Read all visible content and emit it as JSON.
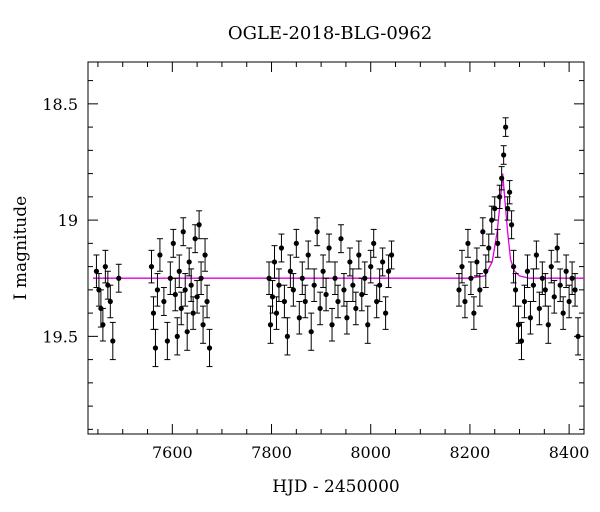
{
  "chart_data": {
    "type": "scatter",
    "title": "OGLE-2018-BLG-0962",
    "xlabel": "HJD - 2450000",
    "ylabel": "I magnitude",
    "xlim": [
      7430,
      8430
    ],
    "ylim": [
      19.92,
      18.32
    ],
    "y_inverted": true,
    "grid": false,
    "legend": "none",
    "xticks": [
      7600,
      7800,
      8000,
      8200,
      8400
    ],
    "xtick_labels": [
      "7600",
      "7800",
      "8000",
      "8200",
      "8400"
    ],
    "yticks": [
      18.5,
      19.0,
      19.5
    ],
    "ytick_labels": [
      "18.5",
      "19",
      "19.5"
    ],
    "colors": {
      "points": "#000000",
      "model": "#e000e0",
      "axes": "#000000"
    },
    "series": [
      {
        "kind": "points-with-errorbars",
        "x": [
          7447,
          7452,
          7456,
          7460,
          7465,
          7470,
          7475,
          7480,
          7492,
          7558,
          7562,
          7566,
          7570,
          7575,
          7583,
          7590,
          7596,
          7602,
          7606,
          7610,
          7614,
          7618,
          7622,
          7626,
          7630,
          7634,
          7638,
          7642,
          7646,
          7650,
          7654,
          7658,
          7662,
          7666,
          7670,
          7675,
          7795,
          7798,
          7802,
          7806,
          7810,
          7815,
          7820,
          7826,
          7832,
          7838,
          7844,
          7850,
          7856,
          7862,
          7868,
          7874,
          7880,
          7886,
          7892,
          7898,
          7904,
          7910,
          7916,
          7922,
          7928,
          7934,
          7940,
          7946,
          7952,
          7958,
          7964,
          7970,
          7976,
          7982,
          7988,
          7994,
          8000,
          8006,
          8012,
          8018,
          8024,
          8030,
          8036,
          8042,
          8178,
          8184,
          8190,
          8196,
          8202,
          8208,
          8214,
          8220,
          8226,
          8232,
          8238,
          8244,
          8250,
          8256,
          8260,
          8264,
          8268,
          8272,
          8276,
          8280,
          8284,
          8288,
          8292,
          8298,
          8304,
          8310,
          8316,
          8322,
          8328,
          8334,
          8340,
          8346,
          8352,
          8358,
          8364,
          8370,
          8376,
          8382,
          8388,
          8394,
          8400,
          8406,
          8412,
          8418
        ],
        "y": [
          19.22,
          19.3,
          19.38,
          19.45,
          19.2,
          19.28,
          19.35,
          19.52,
          19.25,
          19.2,
          19.4,
          19.55,
          19.3,
          19.15,
          19.35,
          19.52,
          19.25,
          19.1,
          19.32,
          19.5,
          19.22,
          19.38,
          19.05,
          19.3,
          19.48,
          19.18,
          19.28,
          19.4,
          19.08,
          19.33,
          19.02,
          19.25,
          19.45,
          19.15,
          19.35,
          19.55,
          19.25,
          19.45,
          19.33,
          19.18,
          19.4,
          19.28,
          19.12,
          19.35,
          19.5,
          19.22,
          19.3,
          19.1,
          19.42,
          19.25,
          19.35,
          19.15,
          19.48,
          19.28,
          19.05,
          19.38,
          19.22,
          19.32,
          19.12,
          19.45,
          19.25,
          19.35,
          19.08,
          19.3,
          19.42,
          19.18,
          19.28,
          19.38,
          19.15,
          19.32,
          19.25,
          19.45,
          19.2,
          19.1,
          19.35,
          19.28,
          19.18,
          19.4,
          19.22,
          19.15,
          19.3,
          19.2,
          19.35,
          19.1,
          19.25,
          19.4,
          19.18,
          19.3,
          19.05,
          19.22,
          19.12,
          19.0,
          18.95,
          19.1,
          18.9,
          18.82,
          18.72,
          18.6,
          18.95,
          18.88,
          19.02,
          19.2,
          19.3,
          19.45,
          19.52,
          19.35,
          19.22,
          19.42,
          19.28,
          19.15,
          19.38,
          19.25,
          19.3,
          19.45,
          19.2,
          19.33,
          19.12,
          19.28,
          19.4,
          19.22,
          19.35,
          19.25,
          19.3,
          19.5
        ],
        "yerr": [
          0.07,
          0.07,
          0.08,
          0.07,
          0.07,
          0.06,
          0.07,
          0.08,
          0.06,
          0.07,
          0.07,
          0.08,
          0.07,
          0.07,
          0.06,
          0.08,
          0.07,
          0.06,
          0.07,
          0.08,
          0.07,
          0.07,
          0.06,
          0.07,
          0.08,
          0.06,
          0.07,
          0.07,
          0.06,
          0.07,
          0.06,
          0.07,
          0.08,
          0.07,
          0.07,
          0.08,
          0.07,
          0.08,
          0.07,
          0.07,
          0.07,
          0.07,
          0.06,
          0.07,
          0.08,
          0.07,
          0.07,
          0.06,
          0.07,
          0.07,
          0.07,
          0.06,
          0.08,
          0.07,
          0.06,
          0.07,
          0.07,
          0.07,
          0.06,
          0.07,
          0.07,
          0.07,
          0.06,
          0.07,
          0.07,
          0.06,
          0.07,
          0.07,
          0.06,
          0.07,
          0.07,
          0.08,
          0.07,
          0.06,
          0.07,
          0.07,
          0.06,
          0.07,
          0.07,
          0.06,
          0.07,
          0.07,
          0.07,
          0.06,
          0.07,
          0.07,
          0.06,
          0.07,
          0.06,
          0.07,
          0.06,
          0.06,
          0.05,
          0.06,
          0.05,
          0.05,
          0.04,
          0.04,
          0.05,
          0.05,
          0.06,
          0.07,
          0.07,
          0.08,
          0.08,
          0.07,
          0.07,
          0.07,
          0.07,
          0.06,
          0.07,
          0.07,
          0.07,
          0.08,
          0.07,
          0.07,
          0.06,
          0.07,
          0.07,
          0.07,
          0.07,
          0.07,
          0.07,
          0.08
        ]
      },
      {
        "kind": "model-line",
        "x": [
          7440,
          8200,
          8230,
          8245,
          8255,
          8262,
          8266,
          8270,
          8276,
          8282,
          8290,
          8300,
          8320,
          8430
        ],
        "y": [
          19.25,
          19.25,
          19.24,
          19.18,
          19.05,
          18.9,
          18.8,
          18.9,
          19.05,
          19.17,
          19.22,
          19.24,
          19.25,
          19.25
        ]
      }
    ]
  }
}
